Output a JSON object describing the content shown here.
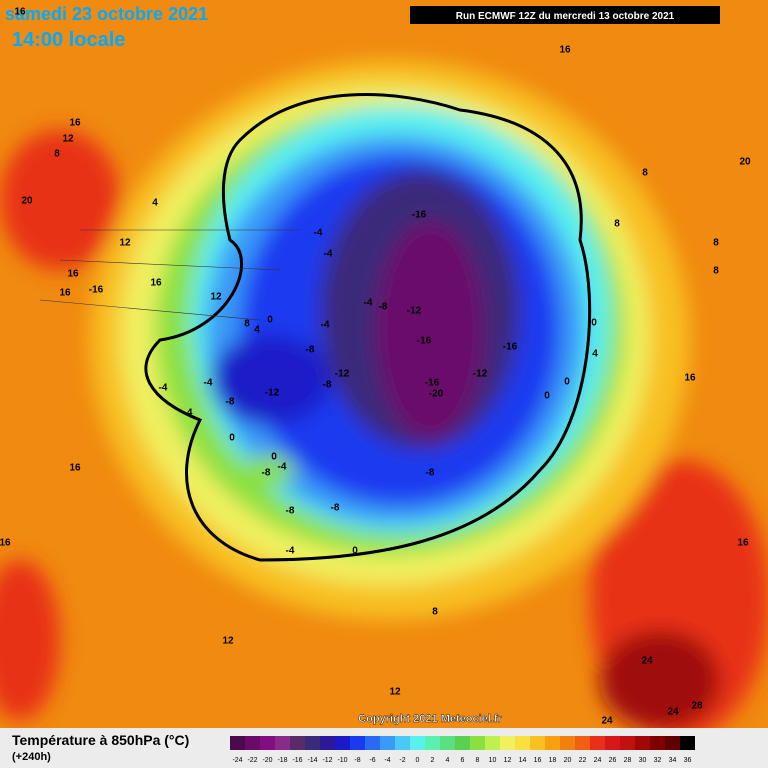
{
  "header": {
    "date": "samedi 23 octobre 2021",
    "time": "14:00 locale",
    "run": "Run ECMWF 12Z du mercredi 13 octobre 2021"
  },
  "map": {
    "contour_labels": [
      16,
      16,
      12,
      8,
      20,
      4,
      12,
      16,
      -16,
      16,
      16,
      12,
      8,
      4,
      0,
      -4,
      -4,
      -4,
      -8,
      -8,
      -12,
      -12,
      -4,
      -8,
      -12,
      -16,
      -16,
      -16,
      -20,
      -12,
      -16,
      16,
      20,
      8,
      8,
      8,
      8,
      0,
      4,
      0,
      0,
      16,
      -4,
      -4,
      -4,
      -8,
      0,
      0,
      -8,
      -4,
      -8,
      -8,
      -8,
      -4,
      0,
      16,
      16,
      16,
      8,
      12,
      24,
      12,
      24,
      28,
      24
    ],
    "copyright": "Copyright 2021 Meteociel.fr"
  },
  "legend": {
    "title": "Température à 850hPa (°C)",
    "subtitle": "(+240h)",
    "scale": [
      {
        "value": -24,
        "color": "#4b0a4b"
      },
      {
        "value": -22,
        "color": "#6b0a6b"
      },
      {
        "value": -20,
        "color": "#820e82"
      },
      {
        "value": -18,
        "color": "#8a2a8a"
      },
      {
        "value": -16,
        "color": "#5a2a6a"
      },
      {
        "value": -14,
        "color": "#3a2a7a"
      },
      {
        "value": -12,
        "color": "#2a1a9a"
      },
      {
        "value": -10,
        "color": "#1a1ac8"
      },
      {
        "value": -8,
        "color": "#1a3af0"
      },
      {
        "value": -6,
        "color": "#2a6af0"
      },
      {
        "value": -4,
        "color": "#3a9af8"
      },
      {
        "value": -2,
        "color": "#4ac8f8"
      },
      {
        "value": 0,
        "color": "#5af0f0"
      },
      {
        "value": 2,
        "color": "#5af0b0"
      },
      {
        "value": 4,
        "color": "#5ae080"
      },
      {
        "value": 6,
        "color": "#5ad050"
      },
      {
        "value": 8,
        "color": "#8ae040"
      },
      {
        "value": 10,
        "color": "#c0f050"
      },
      {
        "value": 12,
        "color": "#f0f060"
      },
      {
        "value": 14,
        "color": "#f8e040"
      },
      {
        "value": 16,
        "color": "#f8c020"
      },
      {
        "value": 18,
        "color": "#f8a010"
      },
      {
        "value": 20,
        "color": "#f08010"
      },
      {
        "value": 22,
        "color": "#f06010"
      },
      {
        "value": 24,
        "color": "#e83018"
      },
      {
        "value": 26,
        "color": "#d81818"
      },
      {
        "value": 28,
        "color": "#c01010"
      },
      {
        "value": 30,
        "color": "#a00808"
      },
      {
        "value": 32,
        "color": "#800000"
      },
      {
        "value": 34,
        "color": "#600000"
      },
      {
        "value": 36,
        "color": "#000000"
      }
    ]
  }
}
